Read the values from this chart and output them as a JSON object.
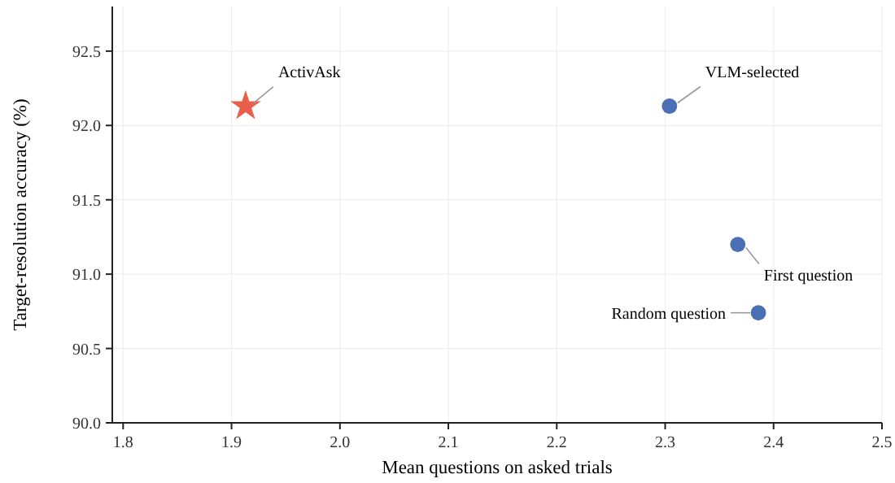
{
  "chart_data": {
    "type": "scatter",
    "xlabel": "Mean questions on asked trials",
    "ylabel": "Target-resolution accuracy (%)",
    "xlim": [
      1.79,
      2.5
    ],
    "xticks": [
      1.8,
      1.9,
      "2.0",
      2.1,
      2.2,
      2.3,
      2.4,
      2.5
    ],
    "ylim": [
      90.0,
      92.8
    ],
    "yticks": [
      {
        "value": 90.0,
        "label": "90.0"
      },
      {
        "value": 90.5,
        "label": "90.5"
      },
      {
        "value": 91.0,
        "label": "91.0"
      },
      {
        "value": 91.5,
        "label": "91.5"
      },
      {
        "value": 92.0,
        "label": "92.0"
      },
      {
        "value": 92.5,
        "label": "92.5"
      }
    ],
    "grid": true,
    "legend": false,
    "series": [
      {
        "name": "ActivAsk",
        "color": "#e8604c",
        "marker": "star",
        "x": [
          1.913
        ],
        "values": [
          92.13
        ]
      },
      {
        "name": "VLM-selected",
        "color": "#4a6fb5",
        "marker": "circle",
        "x": [
          2.304
        ],
        "values": [
          92.13
        ]
      },
      {
        "name": "First question",
        "color": "#4a6fb5",
        "marker": "circle",
        "x": [
          2.367
        ],
        "values": [
          91.2
        ]
      },
      {
        "name": "Random question",
        "color": "#4a6fb5",
        "marker": "circle",
        "x": [
          2.386
        ],
        "values": [
          90.74
        ]
      }
    ]
  }
}
